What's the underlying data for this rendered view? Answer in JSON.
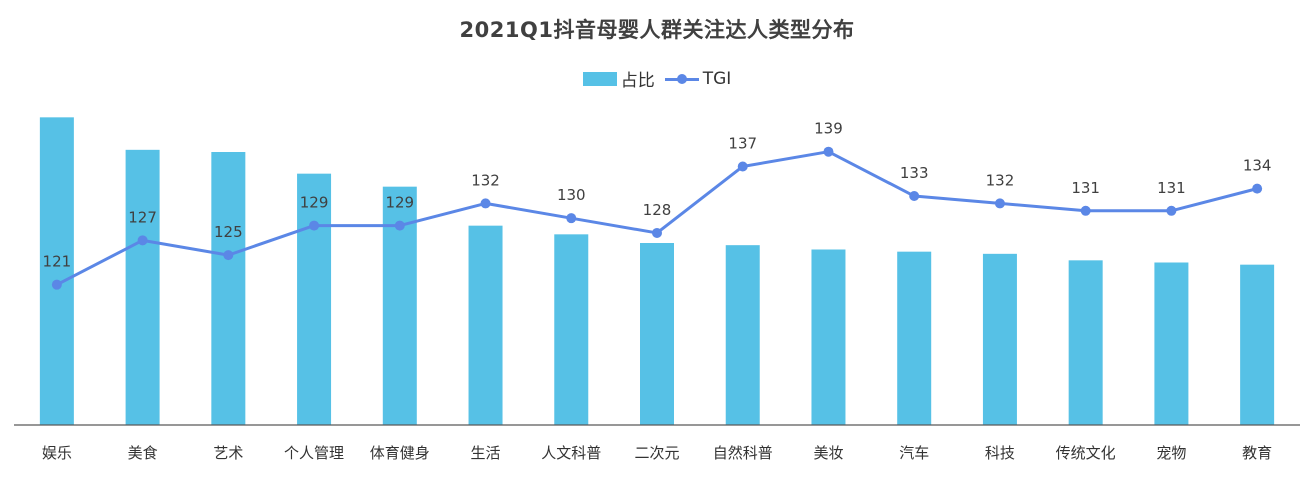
{
  "chart_data": {
    "type": "bar",
    "title": "2021Q1抖音母婴人群关注达人类型分布",
    "categories": [
      "娱乐",
      "美食",
      "艺术",
      "个人管理",
      "体育健身",
      "生活",
      "人文科普",
      "二次元",
      "自然科普",
      "美妆",
      "汽车",
      "科技",
      "传统文化",
      "宠物",
      "教育"
    ],
    "series": [
      {
        "name": "占比",
        "type": "bar",
        "color": "#56C1E6",
        "values": [
          14.2,
          12.7,
          12.6,
          11.6,
          11.0,
          9.2,
          8.8,
          8.4,
          8.3,
          8.1,
          8.0,
          7.9,
          7.6,
          7.5,
          7.4
        ]
      },
      {
        "name": "TGI",
        "type": "line",
        "color": "#5B87E6",
        "values": [
          121,
          127,
          125,
          129,
          129,
          132,
          130,
          128,
          137,
          139,
          133,
          132,
          131,
          131,
          134
        ]
      }
    ],
    "bar_ylim": [
      0,
      15
    ],
    "line_ylim": [
      102,
      146
    ],
    "legend_position": "top-center",
    "grid": false,
    "xlabel": "",
    "ylabel": ""
  }
}
